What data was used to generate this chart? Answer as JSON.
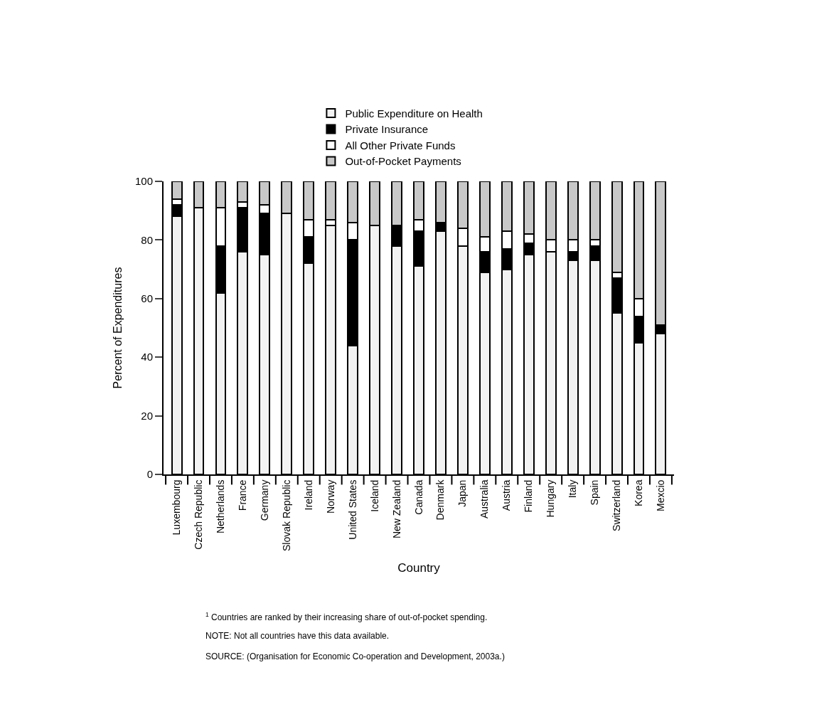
{
  "chart_data": {
    "type": "bar",
    "stacked": true,
    "xlabel": "Country",
    "ylabel": "Percent of Expenditures",
    "categories": [
      "Luxembourg",
      "Czech Republic",
      "Netherlands",
      "France",
      "Germany",
      "Slovak Republic",
      "Ireland",
      "Norway",
      "United States",
      "Iceland",
      "New Zealand",
      "Canada",
      "Denmark",
      "Japan",
      "Australia",
      "Austria",
      "Finland",
      "Hungary",
      "Italy",
      "Spain",
      "Switzerland",
      "Korea",
      "Mexcio"
    ],
    "series": [
      {
        "name": "Public Expenditure on Health",
        "color": "#f2f2f2",
        "values": [
          88,
          91,
          62,
          76,
          75,
          89,
          72,
          85,
          44,
          85,
          78,
          71,
          83,
          78,
          69,
          70,
          75,
          76,
          73,
          73,
          55,
          45,
          48
        ]
      },
      {
        "name": "Private Insurance",
        "color": "#000000",
        "values": [
          4,
          0,
          16,
          15,
          14,
          0,
          9,
          0,
          36,
          0,
          7,
          12,
          3,
          0,
          7,
          7,
          4,
          0,
          3,
          5,
          12,
          9,
          3
        ]
      },
      {
        "name": "All Other Private Funds",
        "color": "#ffffff",
        "values": [
          2,
          0,
          13,
          2,
          3,
          0,
          6,
          2,
          6,
          0,
          0,
          4,
          0,
          6,
          5,
          6,
          3,
          4,
          4,
          2,
          2,
          6,
          0
        ]
      },
      {
        "name": "Out-of-Pocket Payments",
        "color": "#c8c8c8",
        "values": [
          6,
          9,
          9,
          7,
          8,
          11,
          13,
          13,
          14,
          15,
          15,
          13,
          14,
          16,
          19,
          17,
          18,
          20,
          20,
          20,
          31,
          40,
          49
        ]
      }
    ],
    "ylim": [
      0,
      100
    ],
    "yticks": [
      0,
      20,
      40,
      60,
      80,
      100
    ],
    "grid": false,
    "legend": "top",
    "annotations": [
      "$^{1}$ Countries are ranked by their increasing share of out-of-pocket spending.",
      "NOTE: Not all countries have this data available.",
      "SOURCE: (Organisation for Economic Co-operation and Development, 2003a.)"
    ]
  }
}
